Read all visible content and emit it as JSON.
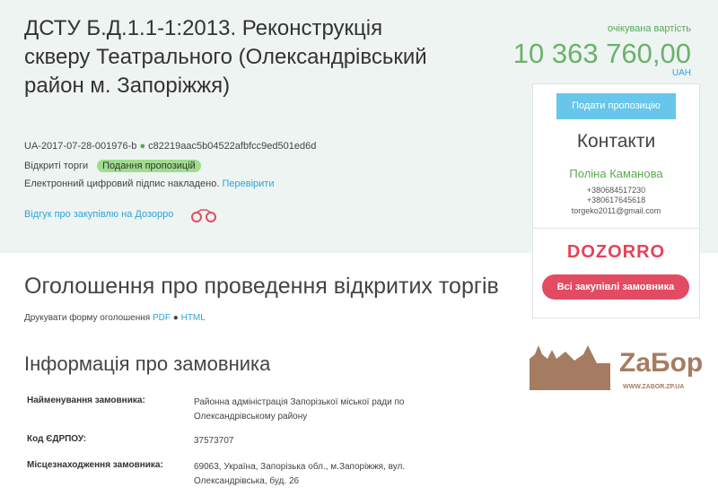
{
  "tender": {
    "title": "ДСТУ Б.Д.1.1-1:2013. Реконструкція скверу Театрального (Олександрівський район м. Запоріжжя)",
    "id": "UA-2017-07-28-001976-b",
    "hash": "c82219aac5b04522afbfcc9ed501ed6d",
    "type": "Відкриті торги",
    "status": "Подання пропозицій",
    "signature_text": "Електронний цифровий підпис накладено.",
    "verify_link": "Перевірити",
    "review_link": "Відгук про закупівлю на Дозорро",
    "expected_label": "очікувана вартість",
    "amount": "10 363 760,00",
    "currency": "UAH"
  },
  "sidebar": {
    "submit_button": "Подати пропозицію",
    "contacts_title": "Контакти",
    "contact_name": "Поліна Каманова",
    "phone1": "+380684517230",
    "phone2": "+380617645618",
    "email": "torgeko2011@gmail.com",
    "dozorro_logo": "DOZORRO",
    "all_tenders_button": "Всі закупівлі замовника",
    "watermark": "ZaБор",
    "watermark_url": "WWW.ZABOR.ZP.UA"
  },
  "announcement": {
    "title": "Оголошення про проведення відкритих торгів",
    "print_label": "Друкувати форму оголошення",
    "pdf": "PDF",
    "html": "HTML"
  },
  "customer": {
    "title": "Інформація про замовника",
    "rows": [
      {
        "label": "Найменування замовника:",
        "value": "Районна адміністрація Запорізької міської ради по Олександрівському району"
      },
      {
        "label": "Код ЄДРПОУ:",
        "value": "37573707"
      },
      {
        "label": "Місцезнаходження замовника:",
        "value": "69063, Україна, Запорізька обл., м.Запоріжжя, вул. Олександрівська, буд. 26"
      }
    ]
  },
  "colors": {
    "accent": "#2ea3d9",
    "green": "#6bb26b",
    "dozorro": "#e34b62"
  }
}
